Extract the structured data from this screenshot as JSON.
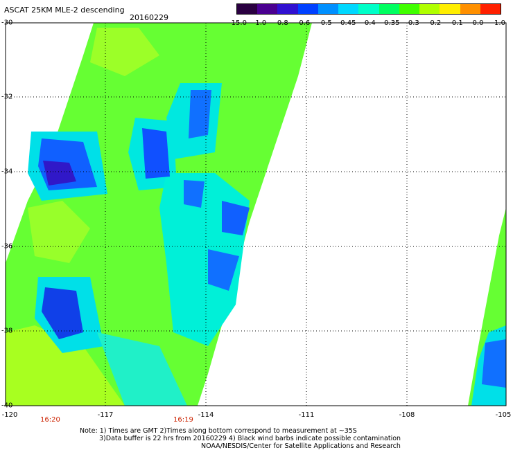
{
  "title": "ASCAT 25KM MLE-2 descending",
  "date": "20160229",
  "colorbar": {
    "labels": [
      "-15.0",
      "-1.0",
      "-0.8",
      "-0.6",
      "-0.5",
      "-0.45",
      "-0.4",
      "-0.35",
      "-0.3",
      "-0.2",
      "-0.1",
      "0.0",
      "1.0"
    ],
    "colors": [
      "#2a0040",
      "#4a0090",
      "#3010d0",
      "#0040ff",
      "#0090ff",
      "#00d8ff",
      "#00ffc8",
      "#00ff60",
      "#40ff00",
      "#b0ff00",
      "#ffee00",
      "#ff9000",
      "#ff2000"
    ]
  },
  "y_axis": {
    "labels": [
      "-30",
      "-32",
      "-34",
      "-36",
      "-38",
      "-40"
    ]
  },
  "x_axis": {
    "labels": [
      "-120",
      "-117",
      "-114",
      "-111",
      "-108",
      "-105"
    ]
  },
  "times": [
    {
      "label": "16:20"
    },
    {
      "label": "16:19"
    }
  ],
  "notes": [
    "Note: 1) Times are GMT 2)Times along bottom correspond to measurement at ~35S",
    "3)Data buffer is 22 hrs from 20160229 4) Black wind barbs indicate possible contamination",
    "NOAA/NESDIS/Center for Satellite Applications and Research"
  ]
}
